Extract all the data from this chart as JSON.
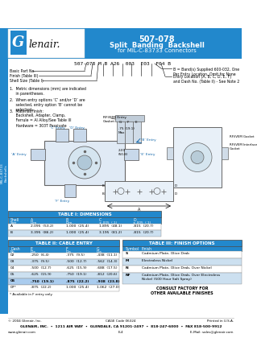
{
  "title_part": "507-078",
  "title_line1": "Split  Banding  Backshell",
  "title_line2": "for MIL-C-83733 Connectors",
  "header_bg": "#2288cc",
  "header_text_color": "#ffffff",
  "sidebar_bg": "#2288cc",
  "sidebar_text": "MIL-C-83733\nBackshells",
  "part_number_line": "507-078 M B A26  003  E03  F04 B",
  "note1": "1.  Metric dimensions (mm) are indicated\n     in parentheses.",
  "note2": "2.  When entry options ‘C’ and/or ‘D’ are\n     selected, entry option ‘B’ cannot be\n     selected.",
  "note3": "3.  Material/Finish:\n     Backshell, Adapter, Clamp,\n     Ferrule = Al Alloy/See Table III\n     Hardware = 303T Passivate",
  "label_basicpart": "Basic Part No.",
  "label_finish": "Finish (Table III)",
  "label_shell": "Shell Size (Table I)",
  "label_band": "B = Band(s) Supplied 600-032, One\nPer Entry Location, Omit for None",
  "label_entry": "Entry Location (A, B, C, D, E, F)\nand Dash No. (Table II) - See Note 2",
  "label_rfiemi": "RFI/EMI Entry\nGasket",
  "label_b_entry": "‘B’ Entry",
  "label_c_entry": "‘C’ Entry",
  "label_d_entry": "‘D’ Entry",
  "label_a_entry": "‘A’ Entry",
  "label_e_entry": "‘E’ Entry",
  "label_f_entry": "‘F’ Entry",
  "label_75max": ".75 (19.1)\nMax",
  "label_200": "2.00\n(50.8)",
  "label_rfigasket": "RFI/VEM Gasket",
  "label_rfiinterface": "RFI/VEM Interface\nGasket",
  "dim_A": "A",
  "dim_B": "B",
  "dim_C": "C",
  "dim_D": "D",
  "dim_G": "G",
  "dim_F": "F",
  "dim_E": "E",
  "table1_title": "TABLE I: DIMENSIONS",
  "table1_headers": [
    "Shell\nSize",
    "A\nDim",
    "B\nDim",
    "C\n±.005  (.1)",
    "D\n±.005  (.1)"
  ],
  "table1_rows": [
    [
      "A",
      "2.095  (53.2)",
      "1.000  (25.4)",
      "1.895  (48.1)",
      ".815  (20.7)"
    ],
    [
      "B",
      "3.395  (86.2)",
      "1.000  (25.4)",
      "3.195  (81.2)",
      ".815  (20.7)"
    ]
  ],
  "table1_row_colors": [
    "#ffffff",
    "#cce0f0"
  ],
  "table2_title": "TABLE II: CABLE ENTRY",
  "table2_headers": [
    "Dash\nNo.",
    "E\nDia",
    "F\nDia",
    "G\nDia"
  ],
  "table2_rows": [
    [
      "02",
      ".250  (6.4)",
      ".375  (9.5)",
      ".438  (11.1)"
    ],
    [
      "03",
      ".375  (9.5)",
      ".500  (12.7)",
      ".562  (14.3)"
    ],
    [
      "04",
      ".500  (12.7)",
      ".625  (15.9)",
      ".688  (17.5)"
    ],
    [
      "05",
      ".625  (15.9)",
      ".750  (19.1)",
      ".812  (20.6)"
    ],
    [
      "06",
      ".750  (19.1)",
      ".875  (22.2)",
      ".938  (23.8)"
    ],
    [
      "07*",
      ".875  (22.2)",
      "1.000  (25.4)",
      "1.062  (27.0)"
    ]
  ],
  "table2_row_colors": [
    "#ffffff",
    "#cce0f0",
    "#ffffff",
    "#cce0f0",
    "#aaccee",
    "#ffffff"
  ],
  "table2_note": "* Available in F entry only.",
  "table3_title": "TABLE III: FINISH OPTIONS",
  "table3_headers": [
    "Symbol",
    "Finish"
  ],
  "table3_rows": [
    [
      "S",
      "Cadmium Plate, Olive Drab"
    ],
    [
      "M",
      "Electroless Nickel"
    ],
    [
      "N",
      "Cadmium Plate, Olive Drab, Over Nickel"
    ],
    [
      "NF",
      "Cadmium Plate, Olive Drab, Over Electroless\nNickel (500 Hour Salt Spray)"
    ]
  ],
  "table3_row_colors": [
    "#ffffff",
    "#cce0f0",
    "#ffffff",
    "#cce0f0"
  ],
  "table3_consult": "CONSULT FACTORY FOR\nOTHER AVAILABLE FINISHES",
  "table_hdr_bg": "#2288cc",
  "table_hdr_fg": "#ffffff",
  "footer_copy": "© 2004 Glenair, Inc.",
  "footer_cage": "CAGE Code 06324",
  "footer_printed": "Printed in U.S.A.",
  "footer_company": "GLENAIR, INC.  •  1211 AIR WAY  •  GLENDALE, CA 91201-2497  •  818-247-6000  •  FAX 818-500-9912",
  "footer_web": "www.glenair.com",
  "footer_page": "E-4",
  "footer_email": "E-Mail: sales@glenair.com",
  "bg": "#ffffff"
}
